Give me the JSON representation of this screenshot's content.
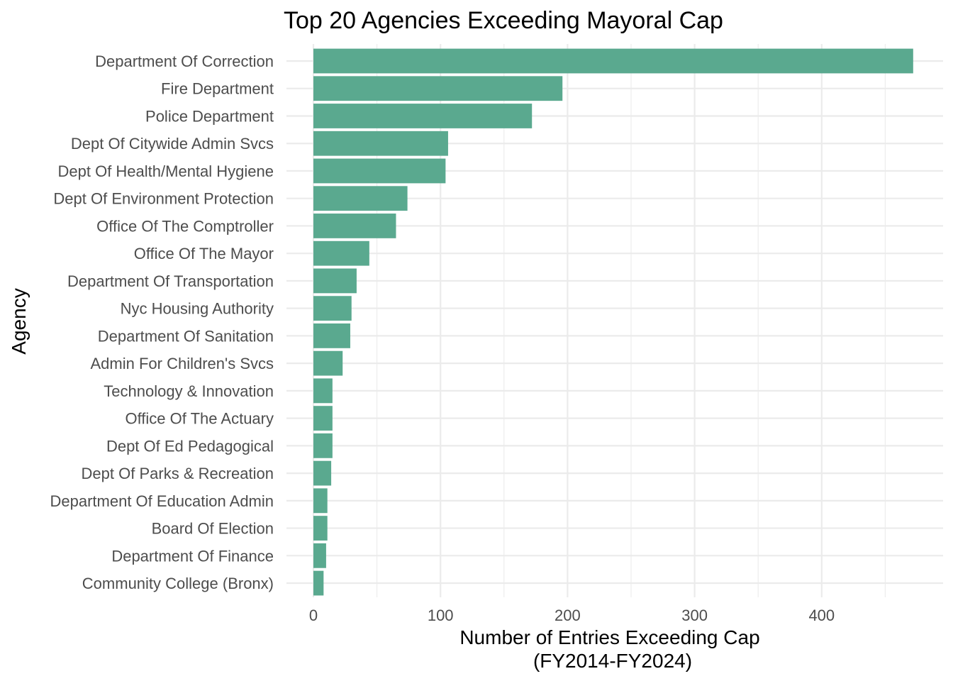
{
  "chart_data": {
    "type": "bar",
    "orientation": "horizontal",
    "title": "Top 20 Agencies Exceeding Mayoral Cap",
    "xlabel_lines": [
      "Number of Entries Exceeding Cap",
      "(FY2014-FY2024)"
    ],
    "ylabel": "Agency",
    "xlim": [
      0,
      500
    ],
    "x_ticks": [
      0,
      100,
      200,
      300,
      400
    ],
    "bar_color": "#5aa98f",
    "grid": true,
    "categories": [
      "Department Of Correction",
      "Fire Department",
      "Police Department",
      "Dept Of Citywide Admin Svcs",
      "Dept Of Health/Mental Hygiene",
      "Dept Of Environment Protection",
      "Office Of The Comptroller",
      "Office Of The Mayor",
      "Department Of Transportation",
      "Nyc Housing Authority",
      "Department Of Sanitation",
      "Admin For Children's Svcs",
      "Technology & Innovation",
      "Office Of The Actuary",
      "Dept Of Ed Pedagogical",
      "Dept Of Parks & Recreation",
      "Department Of Education Admin",
      "Board Of Election",
      "Department Of Finance",
      "Community College (Bronx)"
    ],
    "values": [
      472,
      196,
      172,
      106,
      104,
      74,
      65,
      44,
      34,
      30,
      29,
      23,
      15,
      15,
      15,
      14,
      11,
      11,
      10,
      8
    ]
  }
}
